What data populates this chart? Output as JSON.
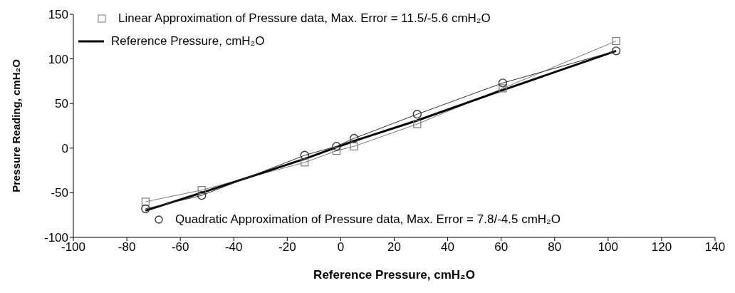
{
  "chart_data": {
    "type": "line",
    "xlabel": "Reference Pressure,  cmH₂O",
    "ylabel": "Pressure Reading, cmH₂O",
    "x": [
      -73,
      -52,
      -13.5,
      -1.6,
      5,
      28.6,
      60.6,
      103
    ],
    "xlim": [
      -100,
      140
    ],
    "xticks": [
      -100,
      -80,
      -60,
      -40,
      -20,
      0,
      20,
      40,
      60,
      80,
      100,
      120,
      140
    ],
    "ylim": [
      -100,
      150
    ],
    "yticks": [
      -100,
      -50,
      0,
      50,
      100,
      150
    ],
    "legend": "top left",
    "series": [
      {
        "name": "Linear Approximation of Pressure data, Max. Error = 11.5/-5.6 cmH₂O",
        "color": "#7a7a7a",
        "marker": "square",
        "values": [
          -60,
          -47,
          -16,
          -3,
          2,
          27,
          67,
          120
        ]
      },
      {
        "name": "Reference Pressure, cmH₂O",
        "color": "#000000",
        "marker": "none",
        "values": [
          -70,
          -50,
          -12,
          1,
          8,
          31,
          65,
          109
        ]
      },
      {
        "name": "Quadratic Approximation of Pressure data, Max. Error = 7.8/-4.5 cmH₂O",
        "color": "#333333",
        "marker": "circle",
        "values": [
          -68,
          -53,
          -8,
          2,
          11,
          38,
          73,
          109
        ]
      }
    ]
  }
}
